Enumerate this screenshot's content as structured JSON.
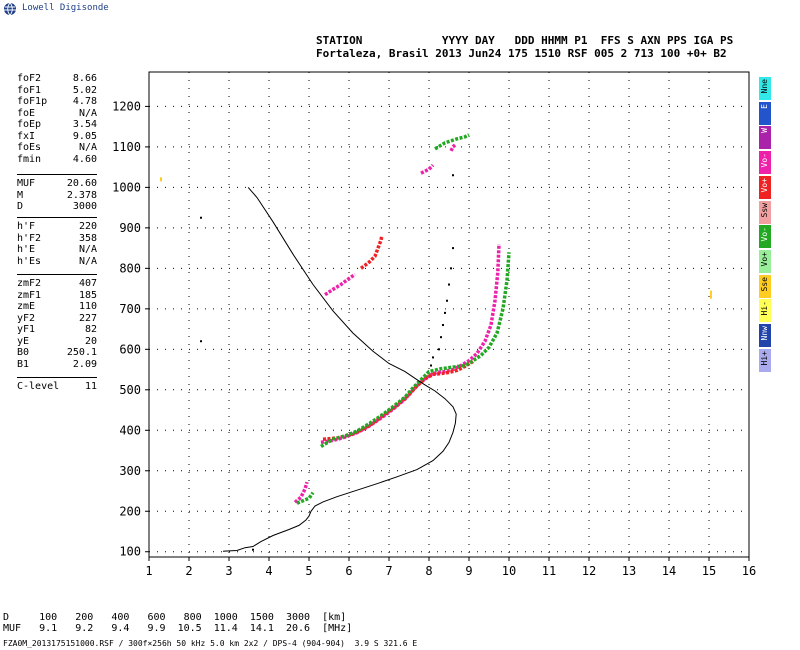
{
  "app_title": "Lowell Digisonde",
  "header": {
    "line1": "STATION            YYYY DAY   DDD HHMM P1  FFS S AXN PPS IGA PS",
    "line2": "Fortaleza, Brasil 2013 Jun24 175 1510 RSF 005 2 713 100 +0+ B2"
  },
  "params": [
    [
      [
        "foF2",
        "8.66"
      ],
      [
        "foF1",
        "5.02"
      ],
      [
        "foF1p",
        "4.78"
      ],
      [
        "foE",
        "N/A"
      ],
      [
        "foEp",
        "3.54"
      ],
      [
        "fxI",
        "9.05"
      ],
      [
        "foEs",
        "N/A"
      ],
      [
        "fmin",
        "4.60"
      ]
    ],
    [
      [
        "MUF",
        "20.60"
      ],
      [
        "M",
        "2.378"
      ],
      [
        "D",
        "3000"
      ]
    ],
    [
      [
        "h'F",
        "220"
      ],
      [
        "h'F2",
        "358"
      ],
      [
        "h'E",
        "N/A"
      ],
      [
        "h'Es",
        "N/A"
      ]
    ],
    [
      [
        "zmF2",
        "407"
      ],
      [
        "zmF1",
        "185"
      ],
      [
        "zmE",
        "110"
      ],
      [
        "yF2",
        "227"
      ],
      [
        "yF1",
        "82"
      ],
      [
        "yE",
        "20"
      ],
      [
        "B0",
        "250.1"
      ],
      [
        "B1",
        "2.09"
      ]
    ],
    [
      [
        "C-level",
        "11"
      ]
    ]
  ],
  "legend": [
    {
      "label": "Nne",
      "color": "#33e8e8"
    },
    {
      "label": "E",
      "color": "#2255cc"
    },
    {
      "label": "W",
      "color": "#aa22aa"
    },
    {
      "label": "Vo-",
      "color": "#ee22aa"
    },
    {
      "label": "Vo+",
      "color": "#ee2222"
    },
    {
      "label": "Ssw",
      "color": "#f0a0a0"
    },
    {
      "label": "Vo-",
      "color": "#22a822"
    },
    {
      "label": "Vo+",
      "color": "#99ee99"
    },
    {
      "label": "Sse",
      "color": "#ffcc22"
    },
    {
      "label": "Hi-",
      "color": "#ffff55"
    },
    {
      "label": "Nnw",
      "color": "#2244aa"
    },
    {
      "label": "Hi+",
      "color": "#aaaaee"
    }
  ],
  "footer": {
    "d_row": "D     100   200   400   600   800  1000  1500  3000  [km]",
    "muf_row": "MUF   9.1   9.2   9.4   9.9  10.5  11.4  14.1  20.6  [MHz]",
    "file_line": "FZA0M_2013175151000.RSF / 300f×256h 50 kHz 5.0 km 2x2 / DPS-4 (904-904)  3.9 S 321.6 E"
  },
  "chart_data": {
    "type": "scatter",
    "xlim": [
      1,
      16
    ],
    "ylim": [
      87,
      1285
    ],
    "x_ticks": [
      1,
      2,
      3,
      4,
      5,
      6,
      7,
      8,
      9,
      10,
      11,
      12,
      13,
      14,
      15,
      16
    ],
    "y_ticks": [
      100,
      200,
      300,
      400,
      500,
      600,
      700,
      800,
      900,
      1000,
      1100,
      1200
    ],
    "grid": "dotted",
    "profile": [
      [
        3.48,
        1000
      ],
      [
        3.7,
        975
      ],
      [
        4.1,
        915
      ],
      [
        4.6,
        835
      ],
      [
        5.1,
        760
      ],
      [
        5.6,
        695
      ],
      [
        6.1,
        640
      ],
      [
        6.6,
        595
      ],
      [
        7.0,
        565
      ],
      [
        7.4,
        545
      ],
      [
        7.7,
        525
      ],
      [
        7.9,
        512
      ],
      [
        8.15,
        497
      ],
      [
        8.4,
        478
      ],
      [
        8.6,
        458
      ],
      [
        8.68,
        440
      ],
      [
        8.66,
        418
      ],
      [
        8.6,
        395
      ],
      [
        8.5,
        370
      ],
      [
        8.35,
        348
      ],
      [
        8.1,
        325
      ],
      [
        7.7,
        303
      ],
      [
        7.2,
        285
      ],
      [
        6.7,
        268
      ],
      [
        6.2,
        252
      ],
      [
        5.7,
        236
      ],
      [
        5.35,
        223
      ],
      [
        5.15,
        213
      ],
      [
        5.05,
        200
      ],
      [
        5.0,
        188
      ],
      [
        4.92,
        178
      ],
      [
        4.75,
        165
      ],
      [
        4.5,
        155
      ],
      [
        4.1,
        140
      ],
      [
        3.8,
        125
      ],
      [
        3.6,
        113
      ],
      [
        3.4,
        110
      ],
      [
        3.2,
        103
      ],
      [
        3.0,
        102
      ],
      [
        2.85,
        101
      ]
    ],
    "traces": [
      {
        "color": "#ee22aa",
        "points": [
          [
            4.65,
            222
          ],
          [
            4.8,
            235
          ],
          [
            4.9,
            255
          ],
          [
            4.95,
            272
          ]
        ]
      },
      {
        "color": "#22a822",
        "points": [
          [
            4.7,
            220
          ],
          [
            4.85,
            226
          ],
          [
            5.0,
            232
          ],
          [
            5.1,
            246
          ]
        ]
      },
      {
        "color": "#ee22aa",
        "points": [
          [
            5.3,
            370
          ],
          [
            5.6,
            375
          ],
          [
            5.9,
            383
          ],
          [
            6.2,
            394
          ],
          [
            6.5,
            410
          ],
          [
            6.8,
            430
          ],
          [
            7.1,
            452
          ],
          [
            7.4,
            477
          ],
          [
            7.6,
            500
          ],
          [
            7.8,
            520
          ],
          [
            8.0,
            535
          ],
          [
            8.2,
            543
          ],
          [
            8.4,
            545
          ],
          [
            8.6,
            550
          ],
          [
            8.8,
            560
          ],
          [
            9.0,
            572
          ],
          [
            9.2,
            590
          ],
          [
            9.4,
            620
          ],
          [
            9.55,
            660
          ],
          [
            9.65,
            720
          ],
          [
            9.72,
            790
          ],
          [
            9.75,
            860
          ]
        ]
      },
      {
        "color": "#ee2222",
        "points": [
          [
            5.35,
            378
          ],
          [
            5.7,
            381
          ],
          [
            6.0,
            388
          ],
          [
            6.3,
            400
          ],
          [
            6.6,
            418
          ],
          [
            6.9,
            440
          ],
          [
            7.2,
            462
          ],
          [
            7.5,
            488
          ],
          [
            7.7,
            510
          ],
          [
            7.9,
            527
          ],
          [
            8.1,
            538
          ],
          [
            8.3,
            540
          ],
          [
            8.5,
            543
          ],
          [
            8.7,
            548
          ],
          [
            8.9,
            558
          ],
          [
            9.1,
            570
          ]
        ]
      },
      {
        "color": "#22a822",
        "points": [
          [
            5.3,
            360
          ],
          [
            5.6,
            378
          ],
          [
            5.9,
            386
          ],
          [
            6.2,
            398
          ],
          [
            6.5,
            416
          ],
          [
            6.8,
            436
          ],
          [
            7.1,
            458
          ],
          [
            7.4,
            482
          ],
          [
            7.6,
            505
          ],
          [
            7.8,
            525
          ],
          [
            8.0,
            545
          ],
          [
            8.3,
            552
          ],
          [
            8.6,
            556
          ],
          [
            8.9,
            560
          ],
          [
            9.1,
            572
          ],
          [
            9.3,
            585
          ],
          [
            9.5,
            605
          ],
          [
            9.7,
            640
          ],
          [
            9.85,
            700
          ],
          [
            9.95,
            770
          ],
          [
            10.0,
            840
          ]
        ]
      },
      {
        "color": "#ee22aa",
        "points": [
          [
            5.4,
            735
          ],
          [
            5.6,
            748
          ],
          [
            5.8,
            760
          ],
          [
            6.0,
            775
          ],
          [
            6.15,
            785
          ]
        ]
      },
      {
        "color": "#ee2222",
        "points": [
          [
            6.3,
            800
          ],
          [
            6.5,
            815
          ],
          [
            6.65,
            830
          ],
          [
            6.8,
            870
          ],
          [
            6.82,
            880
          ]
        ]
      },
      {
        "color": "#ee22aa",
        "points": [
          [
            7.8,
            1035
          ],
          [
            8.0,
            1045
          ],
          [
            8.1,
            1055
          ]
        ]
      },
      {
        "color": "#22a822",
        "points": [
          [
            8.15,
            1095
          ],
          [
            8.4,
            1110
          ],
          [
            8.7,
            1120
          ],
          [
            8.9,
            1125
          ],
          [
            9.0,
            1130
          ]
        ]
      },
      {
        "color": "#ee22aa",
        "points": [
          [
            8.55,
            1090
          ],
          [
            8.6,
            1100
          ],
          [
            8.65,
            1105
          ]
        ]
      }
    ],
    "dots": [
      [
        8.6,
        850
      ],
      [
        8.55,
        800
      ],
      [
        8.5,
        760
      ],
      [
        8.45,
        720
      ],
      [
        8.4,
        690
      ],
      [
        8.35,
        660
      ],
      [
        8.3,
        630
      ],
      [
        8.25,
        600
      ],
      [
        8.6,
        1030
      ],
      [
        2.3,
        925
      ],
      [
        2.3,
        620
      ],
      [
        3.6,
        105
      ],
      [
        8.1,
        580
      ],
      [
        8.05,
        560
      ]
    ],
    "scatter_color": [
      {
        "color": "#ffcc22",
        "points": [
          [
            1.3,
            1020
          ],
          [
            15.05,
            740
          ],
          [
            15.05,
            730
          ]
        ]
      }
    ]
  }
}
